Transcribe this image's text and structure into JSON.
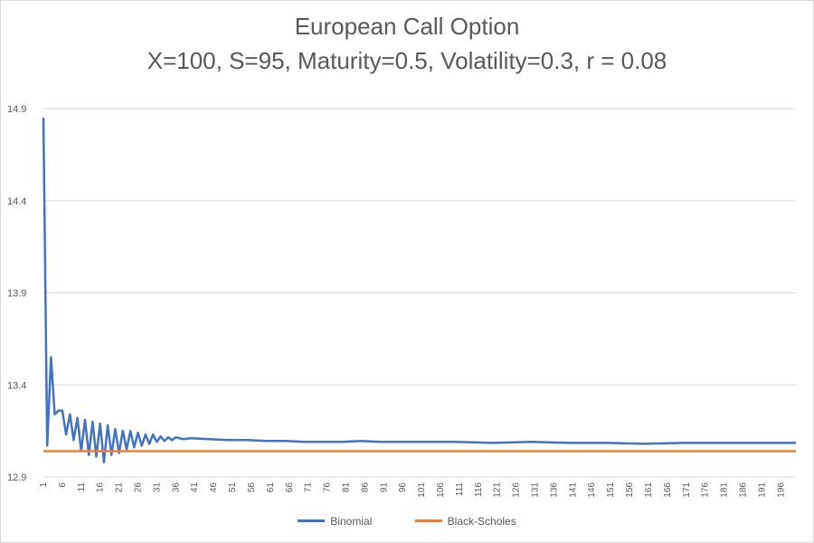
{
  "chart_data": {
    "type": "line",
    "title": "European Call Option",
    "subtitle": "X=100, S=95, Maturity=0.5, Volatility=0.3, r = 0.08",
    "xlabel": "",
    "ylabel": "",
    "ylim": [
      12.9,
      14.9
    ],
    "yticks": [
      "12.9",
      "13.4",
      "13.9",
      "14.4",
      "14.9"
    ],
    "xtick_labels": [
      "1",
      "6",
      "11",
      "16",
      "21",
      "26",
      "31",
      "36",
      "41",
      "46",
      "51",
      "56",
      "61",
      "66",
      "71",
      "76",
      "81",
      "86",
      "91",
      "96",
      "101",
      "106",
      "111",
      "116",
      "121",
      "126",
      "131",
      "136",
      "141",
      "146",
      "151",
      "156",
      "161",
      "166",
      "171",
      "176",
      "181",
      "186",
      "191",
      "196"
    ],
    "x_range": [
      1,
      200
    ],
    "grid": "horizontal",
    "legend_position": "bottom",
    "series": [
      {
        "name": "Binomial",
        "color": "#4472c4",
        "x": [
          1,
          2,
          3,
          4,
          5,
          6,
          7,
          8,
          9,
          10,
          11,
          12,
          13,
          14,
          15,
          16,
          17,
          18,
          19,
          20,
          21,
          22,
          23,
          24,
          25,
          26,
          27,
          28,
          29,
          30,
          31,
          32,
          33,
          34,
          35,
          36,
          38,
          40,
          45,
          50,
          55,
          60,
          65,
          70,
          75,
          80,
          85,
          90,
          95,
          100,
          110,
          120,
          130,
          140,
          150,
          160,
          170,
          180,
          190,
          200
        ],
        "values": [
          14.85,
          13.07,
          13.55,
          13.24,
          13.26,
          13.26,
          13.13,
          13.24,
          13.1,
          13.22,
          13.04,
          13.21,
          13.02,
          13.2,
          13.01,
          13.19,
          12.98,
          13.18,
          13.02,
          13.16,
          13.03,
          13.15,
          13.05,
          13.15,
          13.06,
          13.14,
          13.07,
          13.13,
          13.08,
          13.13,
          13.09,
          13.12,
          13.095,
          13.115,
          13.1,
          13.115,
          13.105,
          13.11,
          13.105,
          13.1,
          13.1,
          13.095,
          13.095,
          13.09,
          13.09,
          13.09,
          13.095,
          13.09,
          13.09,
          13.09,
          13.09,
          13.085,
          13.09,
          13.085,
          13.085,
          13.08,
          13.085,
          13.085,
          13.085,
          13.085
        ]
      },
      {
        "name": "Black-Scholes",
        "color": "#ed7d31",
        "x": [
          1,
          200
        ],
        "values": [
          13.04,
          13.04
        ]
      }
    ]
  }
}
